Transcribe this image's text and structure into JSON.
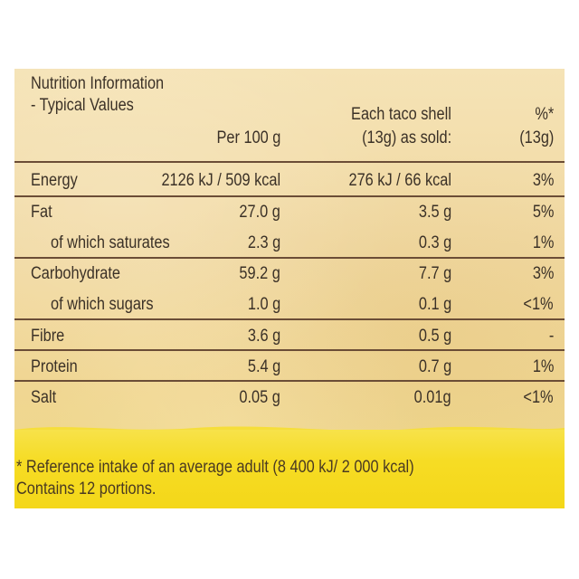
{
  "header": {
    "title_line1": "Nutrition Information",
    "title_line2": "- Typical Values",
    "col_per100": "Per 100 g",
    "col_shell_line1": "Each taco shell",
    "col_shell_line2": "(13g) as sold:",
    "col_pct_line1": "%*",
    "col_pct_line2": "(13g)"
  },
  "rows": [
    {
      "label": "Energy",
      "per100": "2126 kJ / 509 kcal",
      "shell": "276 kJ / 66 kcal",
      "pct": "3%"
    },
    {
      "label": "Fat",
      "per100": "27.0 g",
      "shell": "3.5 g",
      "pct": "5%"
    },
    {
      "label": "of which saturates",
      "per100": "2.3 g",
      "shell": "0.3 g",
      "pct": "1%"
    },
    {
      "label": "Carbohydrate",
      "per100": "59.2 g",
      "shell": "7.7 g",
      "pct": "3%"
    },
    {
      "label": "of which sugars",
      "per100": "1.0 g",
      "shell": "0.1 g",
      "pct": "<1%"
    },
    {
      "label": "Fibre",
      "per100": "3.6 g",
      "shell": "0.5 g",
      "pct": "-"
    },
    {
      "label": "Protein",
      "per100": "5.4 g",
      "shell": "0.7 g",
      "pct": "1%"
    },
    {
      "label": "Salt",
      "per100": "0.05 g",
      "shell": "0.01g",
      "pct": "<1%"
    }
  ],
  "footer": {
    "reference": "* Reference intake of an average adult (8 400 kJ/ 2 000 kcal)",
    "portions": "Contains 12 portions."
  }
}
